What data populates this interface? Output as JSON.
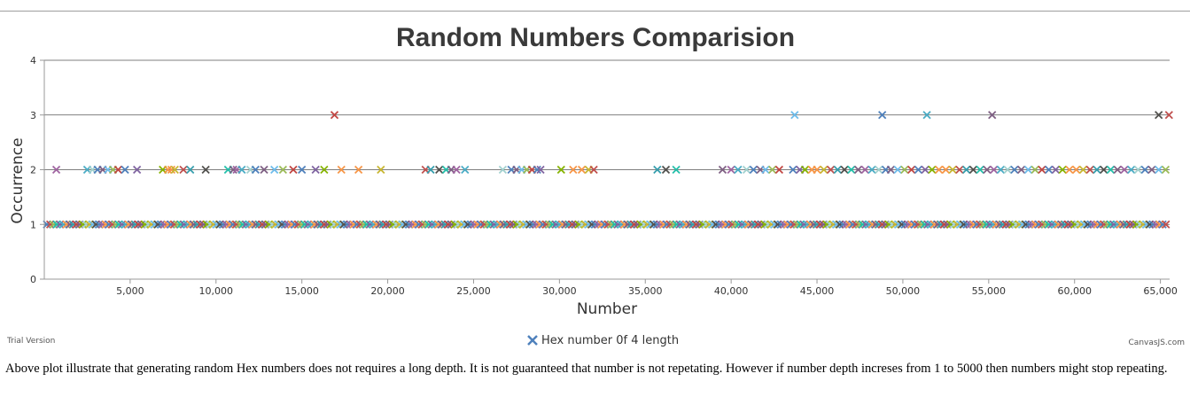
{
  "chart_data": {
    "type": "scatter",
    "title": "Random Numbers Comparision",
    "xlabel": "Number",
    "ylabel": "Occurrence",
    "xlim": [
      0,
      65536
    ],
    "ylim": [
      0,
      4
    ],
    "x_ticks": [
      5000,
      10000,
      15000,
      20000,
      25000,
      30000,
      35000,
      40000,
      45000,
      50000,
      55000,
      60000,
      65000
    ],
    "x_tick_labels": [
      "5,000",
      "10,000",
      "15,000",
      "20,000",
      "25,000",
      "30,000",
      "35,000",
      "40,000",
      "45,000",
      "50,000",
      "55,000",
      "60,000",
      "65,000"
    ],
    "y_ticks": [
      0,
      1,
      2,
      3,
      4
    ],
    "y_tick_labels": [
      "0",
      "1",
      "2",
      "3",
      "4"
    ],
    "grid": "horizontal",
    "legend_position": "bottom-center",
    "marker": "cross",
    "series": [
      {
        "name": "Hex number 0f 4 length",
        "points_occurrence_3": [
          16900,
          43700,
          48800,
          51400,
          55200,
          64900,
          65500
        ],
        "points_occurrence_2": [
          700,
          2500,
          2800,
          3100,
          3400,
          3700,
          4000,
          4300,
          4700,
          5400,
          6900,
          7200,
          7400,
          7600,
          8100,
          8500,
          9400,
          10700,
          11000,
          11200,
          11500,
          12000,
          12300,
          12800,
          13400,
          13900,
          14500,
          15000,
          15800,
          16300,
          17300,
          18300,
          19600,
          22200,
          22500,
          23000,
          23400,
          23700,
          24000,
          24500,
          26700,
          27200,
          27500,
          27800,
          28100,
          28400,
          28700,
          28900,
          30100,
          30800,
          31300,
          31700,
          32000,
          35700,
          36200,
          36800,
          39500,
          40000,
          40400,
          40900,
          41300,
          41700,
          42000,
          42400,
          42800,
          43600,
          44000,
          44300,
          44700,
          45000,
          45400,
          45800,
          46200,
          46600,
          47000,
          47400,
          47800,
          48200,
          48600,
          49000,
          49300,
          49700,
          50100,
          50500,
          50900,
          51300,
          51700,
          52100,
          52500,
          52900,
          53300,
          53700,
          54100,
          54500,
          54900,
          55300,
          55700,
          56100,
          56500,
          56900,
          57300,
          57700,
          58100,
          58500,
          58900,
          59300,
          59700,
          60100,
          60500,
          60900,
          61300,
          61700,
          62100,
          62500,
          62900,
          63300,
          63700,
          64100,
          64500,
          64900,
          65300
        ],
        "occurrence_1_range": [
          0,
          65535
        ]
      }
    ]
  },
  "colors": {
    "palette": [
      "#4F81BC",
      "#C0504E",
      "#9BBB58",
      "#23BFAA",
      "#8064A1",
      "#4AACC5",
      "#F79647",
      "#7F6084",
      "#369EAD",
      "#C24642",
      "#7F6084",
      "#86B402",
      "#A2D1CF",
      "#C8B631",
      "#6DBCEB",
      "#52514E",
      "#4F81BC",
      "#A064A1",
      "#F79647"
    ],
    "legend_marker": "#4F81BC",
    "gridline": "#555555",
    "axis": "#999999"
  },
  "legend": {
    "label": "Hex number 0f 4 length"
  },
  "footer": {
    "trial_label": "Trial Version",
    "credit_label": "CanvasJS.com"
  },
  "description": "Above plot illustrate that generating random Hex numbers does not requires a long depth. It is not guaranteed that number is not repetating. However if number depth increses from 1 to 5000 then numbers might stop repeating."
}
